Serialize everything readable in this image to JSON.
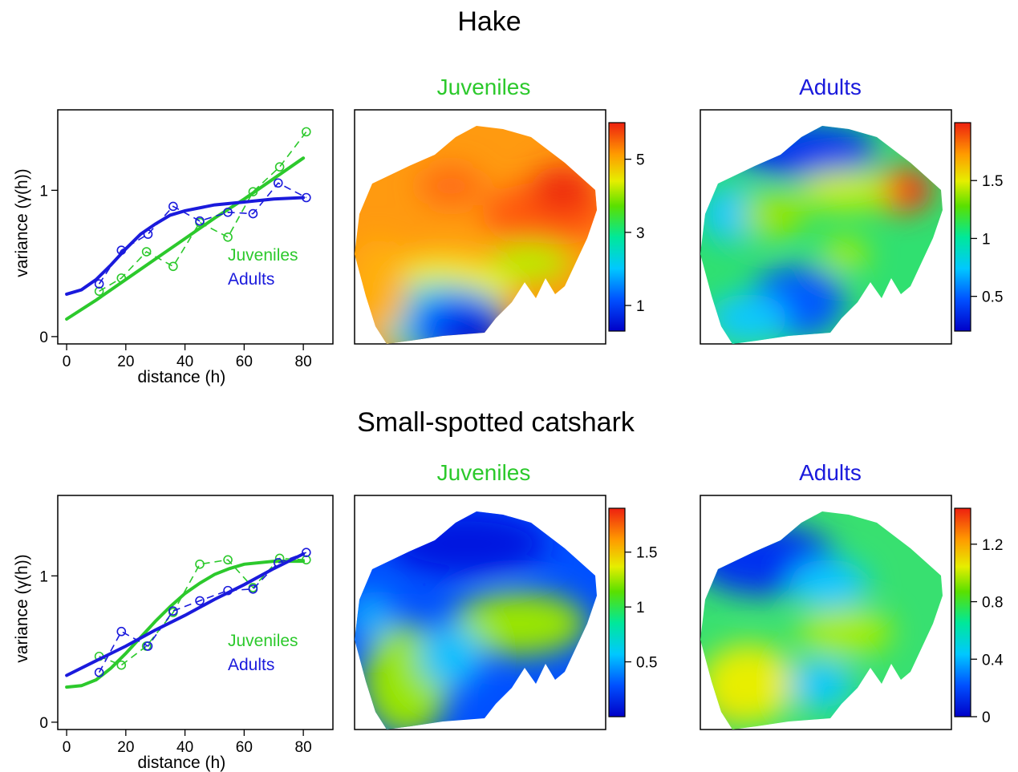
{
  "figure": {
    "rows": [
      {
        "title": "Hake",
        "variogram": {
          "chart_data": {
            "type": "line",
            "xlabel": "distance (h)",
            "ylabel": "variance (γ(h))",
            "xlim": [
              -3,
              90
            ],
            "ylim": [
              -0.05,
              1.55
            ],
            "xticks": [
              0,
              20,
              40,
              60,
              80
            ],
            "yticks": [
              0,
              1
            ],
            "legend_position": "right",
            "series": [
              {
                "name": "Juveniles",
                "color": "#2cc92c",
                "empirical": {
                  "x": [
                    11,
                    18.5,
                    27,
                    36,
                    45,
                    54.5,
                    63,
                    72,
                    81
                  ],
                  "y": [
                    0.31,
                    0.4,
                    0.58,
                    0.48,
                    0.78,
                    0.68,
                    0.99,
                    1.16,
                    1.4
                  ]
                },
                "model": {
                  "x": [
                    0,
                    10,
                    20,
                    30,
                    40,
                    50,
                    60,
                    70,
                    80
                  ],
                  "y": [
                    0.12,
                    0.25,
                    0.39,
                    0.53,
                    0.67,
                    0.81,
                    0.94,
                    1.08,
                    1.22
                  ]
                }
              },
              {
                "name": "Adults",
                "color": "#1a1adc",
                "empirical": {
                  "x": [
                    11,
                    18.5,
                    27.5,
                    36,
                    45,
                    54.5,
                    63,
                    71.5,
                    81
                  ],
                  "y": [
                    0.36,
                    0.59,
                    0.7,
                    0.89,
                    0.79,
                    0.85,
                    0.84,
                    1.05,
                    0.95
                  ]
                },
                "model": {
                  "x": [
                    0,
                    5,
                    10,
                    15,
                    20,
                    25,
                    30,
                    35,
                    40,
                    50,
                    60,
                    70,
                    80
                  ],
                  "y": [
                    0.29,
                    0.32,
                    0.39,
                    0.49,
                    0.6,
                    0.7,
                    0.77,
                    0.83,
                    0.86,
                    0.9,
                    0.92,
                    0.94,
                    0.95
                  ]
                }
              }
            ]
          }
        },
        "maps": [
          {
            "title": "Juveniles",
            "title_color": "#2cc92c",
            "colorbar_ticks": [
              "5",
              "3",
              "1"
            ],
            "colorbar_values": [
              5,
              3,
              1
            ],
            "colorbar_range": [
              0.3,
              6.0
            ]
          },
          {
            "title": "Adults",
            "title_color": "#1a1adc",
            "colorbar_ticks": [
              "1.5",
              "1",
              "0.5"
            ],
            "colorbar_values": [
              1.5,
              1.0,
              0.5
            ],
            "colorbar_range": [
              0.2,
              2.0
            ]
          }
        ]
      },
      {
        "title": "Small-spotted catshark",
        "variogram": {
          "chart_data": {
            "type": "line",
            "xlabel": "distance (h)",
            "ylabel": "variance (γ(h))",
            "xlim": [
              -3,
              90
            ],
            "ylim": [
              -0.05,
              1.55
            ],
            "xticks": [
              0,
              20,
              40,
              60,
              80
            ],
            "yticks": [
              0,
              1
            ],
            "legend_position": "right",
            "series": [
              {
                "name": "Juveniles",
                "color": "#2cc92c",
                "empirical": {
                  "x": [
                    11,
                    18.5,
                    27,
                    36,
                    45,
                    54.5,
                    63,
                    72,
                    81
                  ],
                  "y": [
                    0.45,
                    0.39,
                    0.52,
                    0.75,
                    1.08,
                    1.11,
                    0.92,
                    1.12,
                    1.11
                  ]
                },
                "model": {
                  "x": [
                    0,
                    5,
                    10,
                    15,
                    20,
                    25,
                    30,
                    35,
                    40,
                    45,
                    50,
                    55,
                    60,
                    70,
                    80
                  ],
                  "y": [
                    0.24,
                    0.25,
                    0.29,
                    0.37,
                    0.47,
                    0.58,
                    0.69,
                    0.79,
                    0.88,
                    0.95,
                    1.01,
                    1.05,
                    1.08,
                    1.1,
                    1.1
                  ]
                }
              },
              {
                "name": "Adults",
                "color": "#1a1adc",
                "empirical": {
                  "x": [
                    11,
                    18.5,
                    27.5,
                    36,
                    45,
                    54.5,
                    63,
                    71.5,
                    81
                  ],
                  "y": [
                    0.34,
                    0.62,
                    0.52,
                    0.76,
                    0.83,
                    0.9,
                    0.91,
                    1.09,
                    1.16
                  ]
                },
                "model": {
                  "x": [
                    0,
                    10,
                    20,
                    30,
                    40,
                    50,
                    60,
                    70,
                    80
                  ],
                  "y": [
                    0.32,
                    0.42,
                    0.52,
                    0.63,
                    0.73,
                    0.84,
                    0.94,
                    1.05,
                    1.15
                  ]
                }
              }
            ]
          }
        },
        "maps": [
          {
            "title": "Juveniles",
            "title_color": "#2cc92c",
            "colorbar_ticks": [
              "1.5",
              "1",
              "0.5"
            ],
            "colorbar_values": [
              1.5,
              1.0,
              0.5
            ],
            "colorbar_range": [
              0.0,
              1.9
            ]
          },
          {
            "title": "Adults",
            "title_color": "#1a1adc",
            "colorbar_ticks": [
              "1.2",
              "0.8",
              "0.4",
              "0"
            ],
            "colorbar_values": [
              1.2,
              0.8,
              0.4,
              0.0
            ],
            "colorbar_range": [
              0.0,
              1.45
            ]
          }
        ]
      }
    ]
  }
}
